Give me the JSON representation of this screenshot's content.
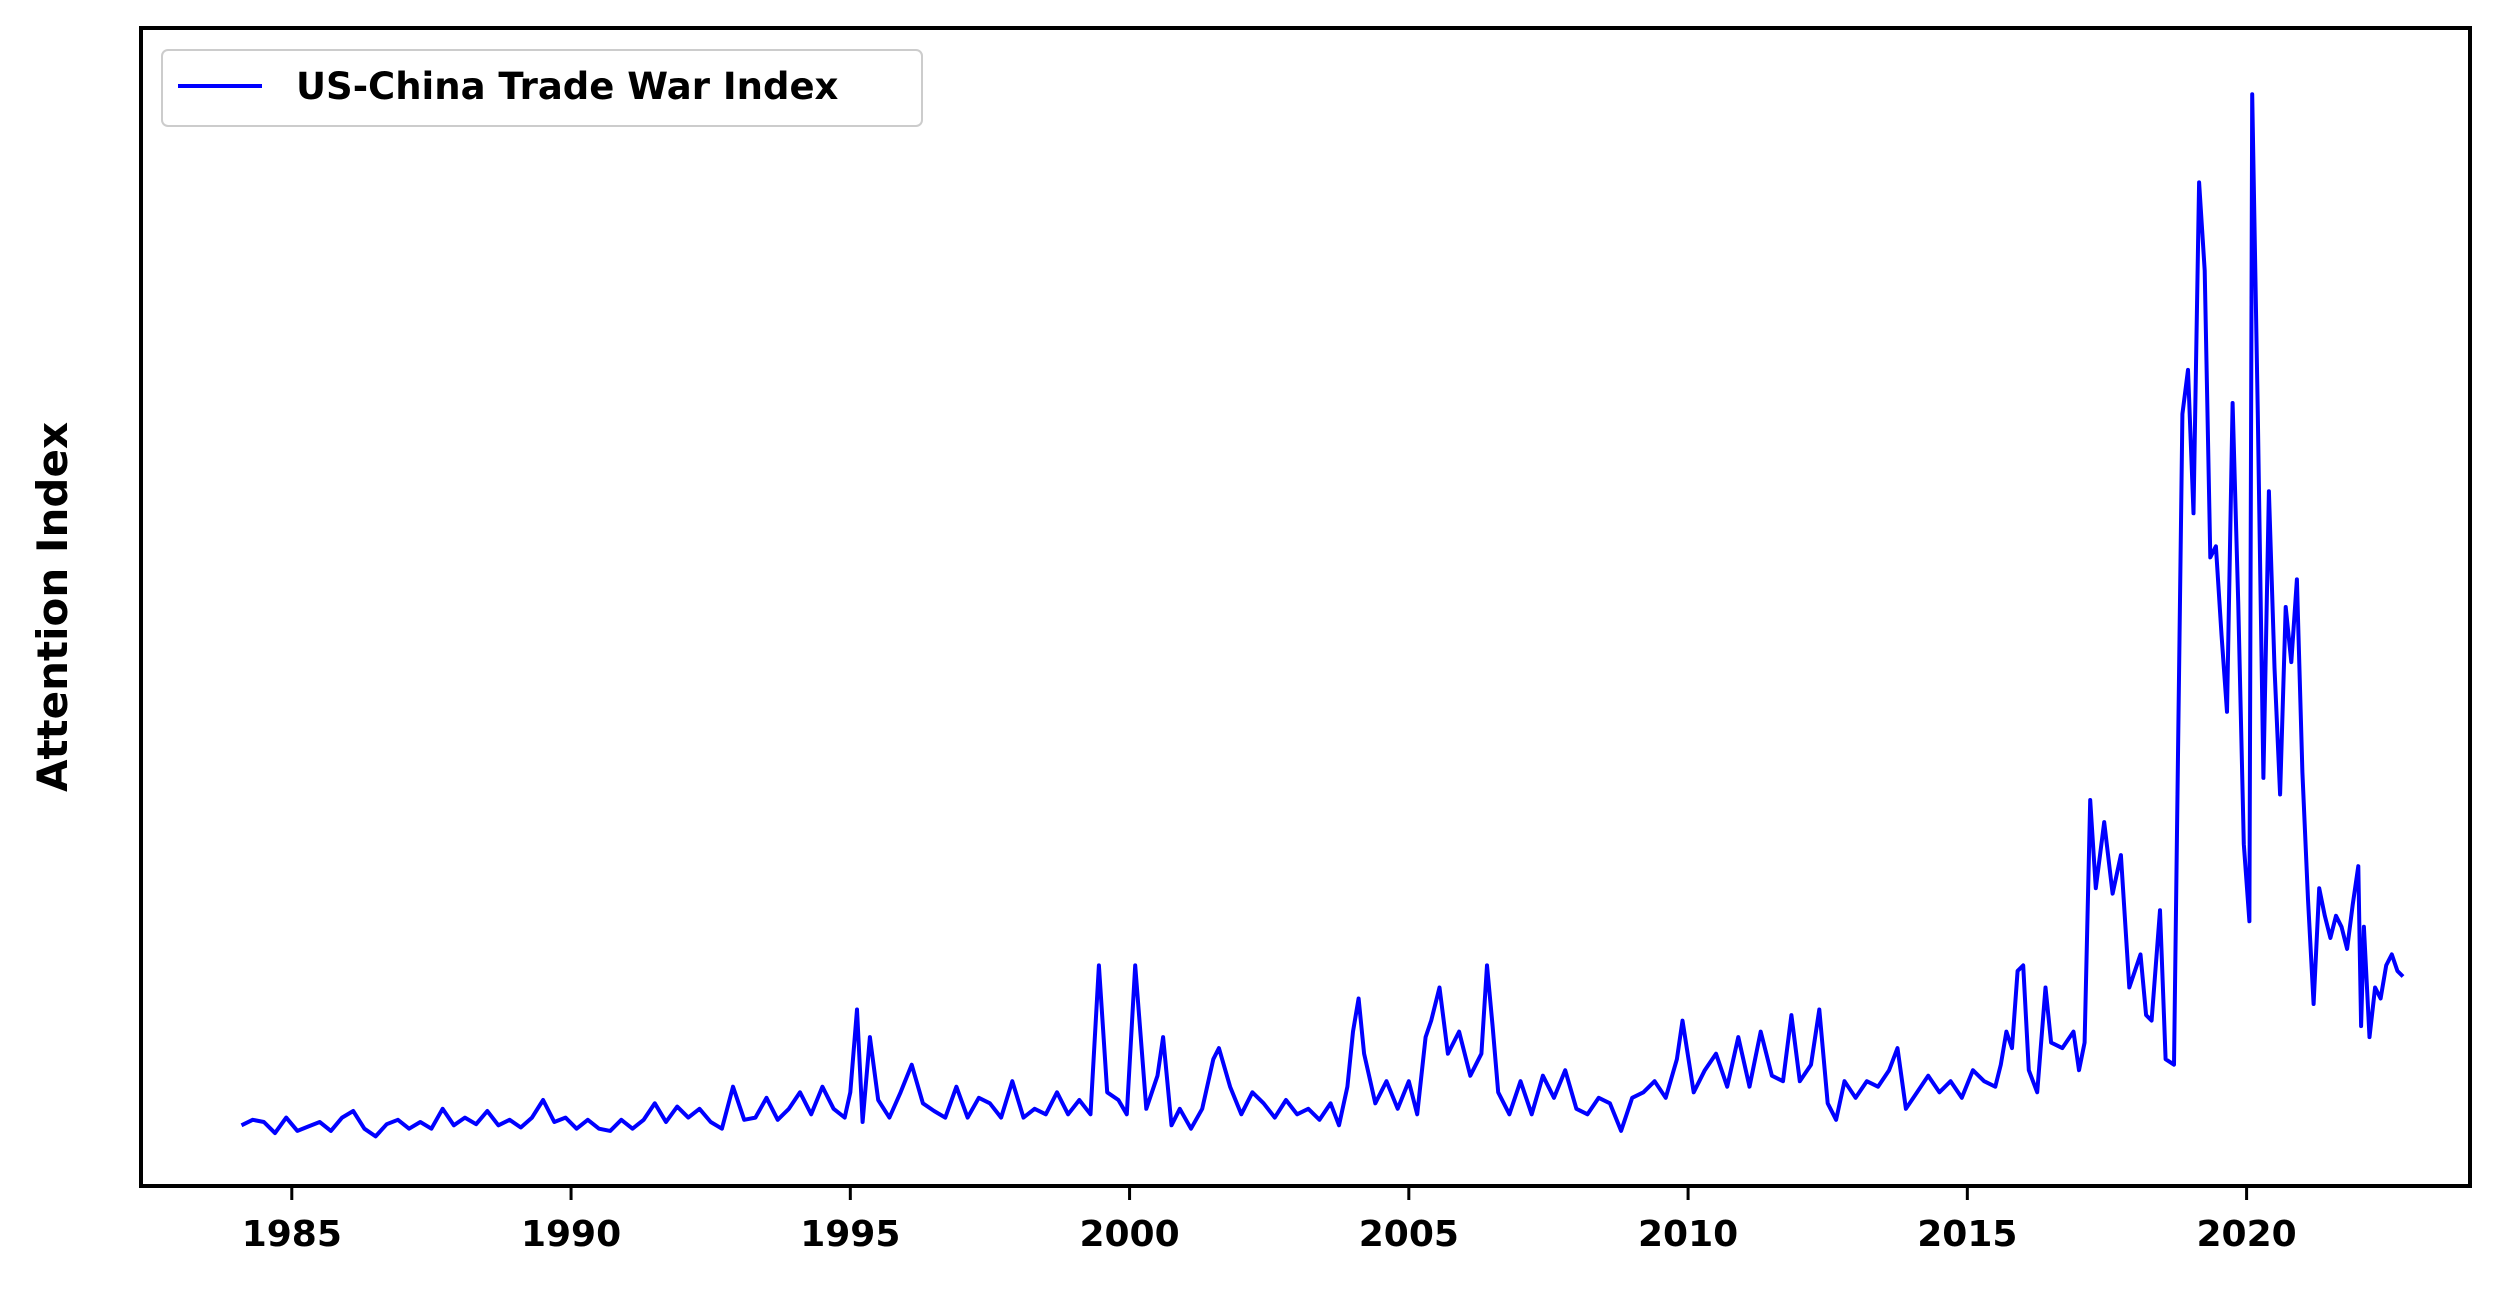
{
  "chart_data": {
    "type": "line",
    "title": "",
    "xlabel": "",
    "ylabel": "Attention Index",
    "xlim": [
      1982.3,
      2024.0
    ],
    "ylim": [
      -0.5,
      10.0
    ],
    "x_ticks": [
      1985,
      1990,
      1995,
      2000,
      2005,
      2010,
      2015,
      2020
    ],
    "y_ticks_shown": false,
    "grid": false,
    "legend": {
      "position": "top-left"
    },
    "colors": {
      "line": "#0000ff",
      "axes": "#000000",
      "background": "#ffffff"
    },
    "series": [
      {
        "name": "US-China Trade War Index",
        "points": [
          [
            1984.1,
            0.05
          ],
          [
            1984.3,
            0.1
          ],
          [
            1984.5,
            0.08
          ],
          [
            1984.7,
            -0.02
          ],
          [
            1984.9,
            0.12
          ],
          [
            1985.1,
            0.0
          ],
          [
            1985.3,
            0.04
          ],
          [
            1985.5,
            0.08
          ],
          [
            1985.7,
            0.0
          ],
          [
            1985.9,
            0.12
          ],
          [
            1986.1,
            0.18
          ],
          [
            1986.3,
            0.02
          ],
          [
            1986.5,
            -0.05
          ],
          [
            1986.7,
            0.06
          ],
          [
            1986.9,
            0.1
          ],
          [
            1987.1,
            0.02
          ],
          [
            1987.3,
            0.08
          ],
          [
            1987.5,
            0.02
          ],
          [
            1987.7,
            0.2
          ],
          [
            1987.9,
            0.05
          ],
          [
            1988.1,
            0.12
          ],
          [
            1988.3,
            0.06
          ],
          [
            1988.5,
            0.18
          ],
          [
            1988.7,
            0.05
          ],
          [
            1988.9,
            0.1
          ],
          [
            1989.1,
            0.03
          ],
          [
            1989.3,
            0.12
          ],
          [
            1989.5,
            0.28
          ],
          [
            1989.7,
            0.08
          ],
          [
            1989.9,
            0.12
          ],
          [
            1990.1,
            0.02
          ],
          [
            1990.3,
            0.1
          ],
          [
            1990.5,
            0.02
          ],
          [
            1990.7,
            0.0
          ],
          [
            1990.9,
            0.1
          ],
          [
            1991.1,
            0.02
          ],
          [
            1991.3,
            0.1
          ],
          [
            1991.5,
            0.25
          ],
          [
            1991.7,
            0.08
          ],
          [
            1991.9,
            0.22
          ],
          [
            1992.1,
            0.12
          ],
          [
            1992.3,
            0.2
          ],
          [
            1992.5,
            0.08
          ],
          [
            1992.7,
            0.02
          ],
          [
            1992.9,
            0.4
          ],
          [
            1993.1,
            0.1
          ],
          [
            1993.3,
            0.12
          ],
          [
            1993.5,
            0.3
          ],
          [
            1993.7,
            0.1
          ],
          [
            1993.9,
            0.2
          ],
          [
            1994.1,
            0.35
          ],
          [
            1994.3,
            0.15
          ],
          [
            1994.5,
            0.4
          ],
          [
            1994.7,
            0.2
          ],
          [
            1994.9,
            0.12
          ],
          [
            1995.0,
            0.35
          ],
          [
            1995.12,
            1.1
          ],
          [
            1995.22,
            0.08
          ],
          [
            1995.35,
            0.85
          ],
          [
            1995.5,
            0.28
          ],
          [
            1995.7,
            0.12
          ],
          [
            1995.9,
            0.35
          ],
          [
            1996.1,
            0.6
          ],
          [
            1996.3,
            0.25
          ],
          [
            1996.5,
            0.18
          ],
          [
            1996.7,
            0.12
          ],
          [
            1996.9,
            0.4
          ],
          [
            1997.1,
            0.12
          ],
          [
            1997.3,
            0.3
          ],
          [
            1997.5,
            0.25
          ],
          [
            1997.7,
            0.12
          ],
          [
            1997.9,
            0.45
          ],
          [
            1998.1,
            0.12
          ],
          [
            1998.3,
            0.2
          ],
          [
            1998.5,
            0.15
          ],
          [
            1998.7,
            0.35
          ],
          [
            1998.9,
            0.15
          ],
          [
            1999.1,
            0.28
          ],
          [
            1999.3,
            0.15
          ],
          [
            1999.45,
            1.5
          ],
          [
            1999.6,
            0.35
          ],
          [
            1999.8,
            0.28
          ],
          [
            1999.95,
            0.15
          ],
          [
            2000.1,
            1.5
          ],
          [
            2000.3,
            0.2
          ],
          [
            2000.5,
            0.5
          ],
          [
            2000.6,
            0.85
          ],
          [
            2000.75,
            0.05
          ],
          [
            2000.9,
            0.2
          ],
          [
            2001.1,
            0.02
          ],
          [
            2001.3,
            0.2
          ],
          [
            2001.5,
            0.65
          ],
          [
            2001.6,
            0.75
          ],
          [
            2001.8,
            0.4
          ],
          [
            2002.0,
            0.15
          ],
          [
            2002.2,
            0.35
          ],
          [
            2002.4,
            0.25
          ],
          [
            2002.6,
            0.12
          ],
          [
            2002.8,
            0.28
          ],
          [
            2003.0,
            0.15
          ],
          [
            2003.2,
            0.2
          ],
          [
            2003.4,
            0.1
          ],
          [
            2003.6,
            0.25
          ],
          [
            2003.75,
            0.05
          ],
          [
            2003.9,
            0.4
          ],
          [
            2004.0,
            0.9
          ],
          [
            2004.1,
            1.2
          ],
          [
            2004.2,
            0.7
          ],
          [
            2004.4,
            0.25
          ],
          [
            2004.6,
            0.45
          ],
          [
            2004.8,
            0.2
          ],
          [
            2005.0,
            0.45
          ],
          [
            2005.15,
            0.15
          ],
          [
            2005.3,
            0.85
          ],
          [
            2005.4,
            1.0
          ],
          [
            2005.55,
            1.3
          ],
          [
            2005.7,
            0.7
          ],
          [
            2005.9,
            0.9
          ],
          [
            2006.1,
            0.5
          ],
          [
            2006.3,
            0.7
          ],
          [
            2006.4,
            1.5
          ],
          [
            2006.5,
            0.95
          ],
          [
            2006.6,
            0.35
          ],
          [
            2006.8,
            0.15
          ],
          [
            2007.0,
            0.45
          ],
          [
            2007.2,
            0.15
          ],
          [
            2007.4,
            0.5
          ],
          [
            2007.6,
            0.3
          ],
          [
            2007.8,
            0.55
          ],
          [
            2008.0,
            0.2
          ],
          [
            2008.2,
            0.15
          ],
          [
            2008.4,
            0.3
          ],
          [
            2008.6,
            0.25
          ],
          [
            2008.8,
            0.0
          ],
          [
            2009.0,
            0.3
          ],
          [
            2009.2,
            0.35
          ],
          [
            2009.4,
            0.45
          ],
          [
            2009.6,
            0.3
          ],
          [
            2009.8,
            0.65
          ],
          [
            2009.9,
            1.0
          ],
          [
            2010.1,
            0.35
          ],
          [
            2010.3,
            0.55
          ],
          [
            2010.5,
            0.7
          ],
          [
            2010.7,
            0.4
          ],
          [
            2010.9,
            0.85
          ],
          [
            2011.1,
            0.4
          ],
          [
            2011.3,
            0.9
          ],
          [
            2011.5,
            0.5
          ],
          [
            2011.7,
            0.45
          ],
          [
            2011.85,
            1.05
          ],
          [
            2012.0,
            0.45
          ],
          [
            2012.2,
            0.6
          ],
          [
            2012.35,
            1.1
          ],
          [
            2012.5,
            0.25
          ],
          [
            2012.65,
            0.1
          ],
          [
            2012.8,
            0.45
          ],
          [
            2013.0,
            0.3
          ],
          [
            2013.2,
            0.45
          ],
          [
            2013.4,
            0.4
          ],
          [
            2013.6,
            0.55
          ],
          [
            2013.75,
            0.75
          ],
          [
            2013.9,
            0.2
          ],
          [
            2014.1,
            0.35
          ],
          [
            2014.3,
            0.5
          ],
          [
            2014.5,
            0.35
          ],
          [
            2014.7,
            0.45
          ],
          [
            2014.9,
            0.3
          ],
          [
            2015.1,
            0.55
          ],
          [
            2015.3,
            0.45
          ],
          [
            2015.5,
            0.4
          ],
          [
            2015.6,
            0.6
          ],
          [
            2015.7,
            0.9
          ],
          [
            2015.8,
            0.75
          ],
          [
            2015.9,
            1.45
          ],
          [
            2016.0,
            1.5
          ],
          [
            2016.1,
            0.55
          ],
          [
            2016.25,
            0.35
          ],
          [
            2016.4,
            1.3
          ],
          [
            2016.5,
            0.8
          ],
          [
            2016.7,
            0.75
          ],
          [
            2016.9,
            0.9
          ],
          [
            2017.0,
            0.55
          ],
          [
            2017.1,
            0.8
          ],
          [
            2017.2,
            3.0
          ],
          [
            2017.3,
            2.2
          ],
          [
            2017.45,
            2.8
          ],
          [
            2017.6,
            2.15
          ],
          [
            2017.75,
            2.5
          ],
          [
            2017.9,
            1.3
          ],
          [
            2018.1,
            1.6
          ],
          [
            2018.2,
            1.05
          ],
          [
            2018.3,
            1.0
          ],
          [
            2018.45,
            2.0
          ],
          [
            2018.55,
            0.65
          ],
          [
            2018.7,
            0.6
          ],
          [
            2018.85,
            6.5
          ],
          [
            2018.95,
            6.9
          ],
          [
            2019.05,
            5.6
          ],
          [
            2019.15,
            8.6
          ],
          [
            2019.25,
            7.8
          ],
          [
            2019.35,
            5.2
          ],
          [
            2019.45,
            5.3
          ],
          [
            2019.55,
            4.5
          ],
          [
            2019.65,
            3.8
          ],
          [
            2019.75,
            6.6
          ],
          [
            2019.85,
            4.8
          ],
          [
            2019.95,
            2.6
          ],
          [
            2020.05,
            1.9
          ],
          [
            2020.1,
            9.4
          ],
          [
            2020.2,
            6.5
          ],
          [
            2020.3,
            3.2
          ],
          [
            2020.4,
            5.8
          ],
          [
            2020.5,
            4.2
          ],
          [
            2020.6,
            3.05
          ],
          [
            2020.7,
            4.75
          ],
          [
            2020.8,
            4.25
          ],
          [
            2020.9,
            5.0
          ],
          [
            2021.0,
            3.25
          ],
          [
            2021.1,
            2.1
          ],
          [
            2021.2,
            1.15
          ],
          [
            2021.3,
            2.2
          ],
          [
            2021.4,
            1.95
          ],
          [
            2021.5,
            1.75
          ],
          [
            2021.6,
            1.95
          ],
          [
            2021.7,
            1.85
          ],
          [
            2021.8,
            1.65
          ],
          [
            2021.9,
            2.05
          ],
          [
            2022.0,
            2.4
          ],
          [
            2022.05,
            0.95
          ],
          [
            2022.1,
            1.85
          ],
          [
            2022.2,
            0.85
          ],
          [
            2022.3,
            1.3
          ],
          [
            2022.4,
            1.2
          ],
          [
            2022.5,
            1.5
          ],
          [
            2022.6,
            1.6
          ],
          [
            2022.7,
            1.45
          ],
          [
            2022.8,
            1.4
          ]
        ]
      }
    ]
  }
}
